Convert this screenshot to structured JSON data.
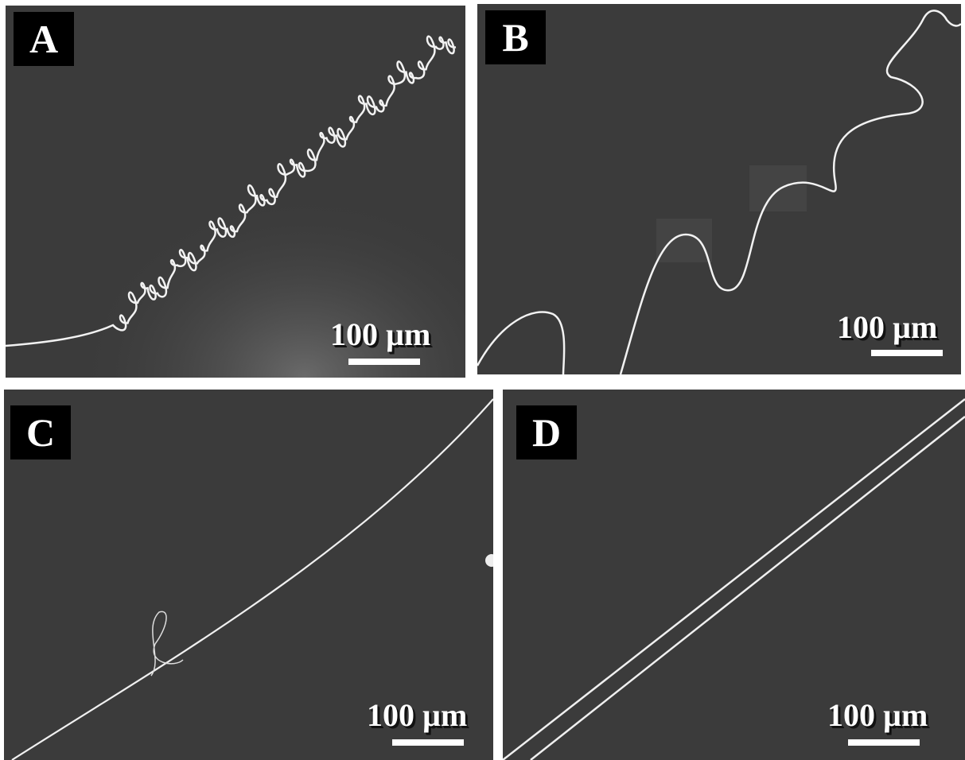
{
  "panels": [
    {
      "label": "A",
      "scale_bar": "100 µm"
    },
    {
      "label": "B",
      "scale_bar": "100 µm"
    },
    {
      "label": "C",
      "scale_bar": "100 µm"
    },
    {
      "label": "D",
      "scale_bar": "100 µm"
    }
  ]
}
